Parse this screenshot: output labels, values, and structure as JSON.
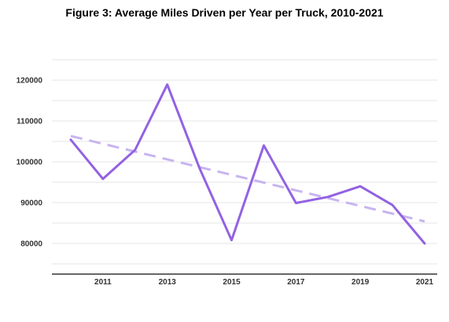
{
  "chart_data": {
    "type": "line",
    "title": "Figure 3: Average Miles Driven per Year per Truck, 2010-2021",
    "xlabel": "",
    "ylabel": "",
    "x": [
      2010,
      2011,
      2012,
      2013,
      2014,
      2015,
      2016,
      2017,
      2018,
      2019,
      2020,
      2021
    ],
    "x_tick_labels": [
      "2011",
      "2013",
      "2015",
      "2017",
      "2019",
      "2021"
    ],
    "y_tick_labels": [
      "80000",
      "90000",
      "100000",
      "110000",
      "120000"
    ],
    "ylim": [
      70000,
      130000
    ],
    "grid": true,
    "legend": "none",
    "series": [
      {
        "values": [
          105400,
          95800,
          102900,
          118900,
          98500,
          80800,
          104000,
          89900,
          91400,
          94000,
          89400,
          80000
        ],
        "color": "#9262e3",
        "style": "solid"
      },
      {
        "values": [
          106300,
          104400,
          102500,
          100600,
          98700,
          96800,
          94900,
          93000,
          91100,
          89200,
          87300,
          85400
        ],
        "color": "#c8b4f0",
        "style": "dashed"
      }
    ]
  }
}
